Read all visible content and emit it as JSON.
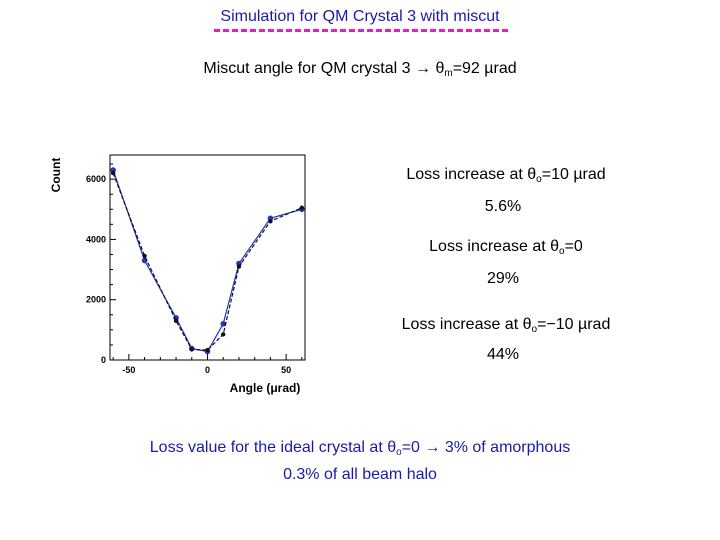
{
  "header": {
    "title": "Simulation for QM Crystal 3 with miscut",
    "subtitle_prefix": "Miscut angle for QM crystal 3 → θ",
    "subtitle_sub": "m",
    "subtitle_suffix": "=92 µrad"
  },
  "stats": [
    {
      "label_prefix": "Loss increase at θ",
      "label_sub": "o",
      "label_suffix": "=10 µrad",
      "value": "5.6%"
    },
    {
      "label_prefix": "Loss increase at θ",
      "label_sub": "o",
      "label_suffix": "=0",
      "value": "29%"
    },
    {
      "label_prefix": "Loss increase at θ",
      "label_sub": "o",
      "label_suffix": "=−10 µrad",
      "value": "44%"
    }
  ],
  "footer": {
    "line1_prefix": "Loss value for the ideal crystal at θ",
    "line1_sub": "o",
    "line1_suffix": "=0 → 3% of amorphous",
    "line2": "0.3% of all beam halo"
  },
  "colors": {
    "title": "#1a1aa8",
    "rule": "#e020c0",
    "series_blue": "#2233cc",
    "series_black": "#111111"
  },
  "chart_data": {
    "type": "line",
    "xlabel": "Angle (μrad)",
    "ylabel": "Count",
    "xlim": [
      -62,
      62
    ],
    "ylim": [
      0,
      6800
    ],
    "xticks": [
      -50,
      0,
      50
    ],
    "yticks": [
      0,
      2000,
      4000,
      6000
    ],
    "xtick_labels": [
      "-50",
      "0",
      "50"
    ],
    "ytick_labels": [
      "0",
      "2000",
      "4000",
      "6000"
    ],
    "grid": false,
    "series": [
      {
        "style": "blue-solid",
        "x": [
          -60,
          -40,
          -20,
          -10,
          0,
          10,
          20,
          40,
          60
        ],
        "y": [
          6300,
          3300,
          1400,
          380,
          280,
          1200,
          3200,
          4700,
          5000
        ]
      },
      {
        "style": "black-dashed",
        "x": [
          -60,
          -40,
          -20,
          -10,
          0,
          10,
          20,
          40,
          60
        ],
        "y": [
          6200,
          3450,
          1300,
          350,
          330,
          850,
          3100,
          4600,
          5050
        ]
      }
    ]
  }
}
